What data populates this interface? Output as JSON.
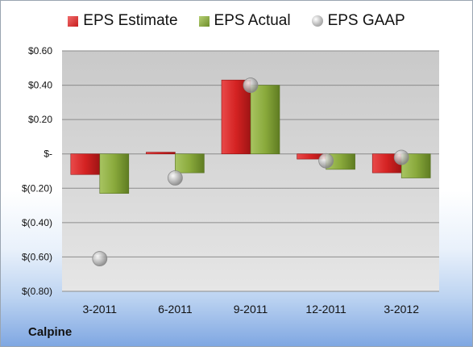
{
  "company": "Calpine",
  "chart_data": {
    "type": "bar",
    "categories": [
      "3-2011",
      "6-2011",
      "9-2011",
      "12-2011",
      "3-2012"
    ],
    "series": [
      {
        "name": "EPS Estimate",
        "kind": "bar",
        "values": [
          -0.12,
          0.01,
          0.43,
          -0.03,
          -0.11
        ],
        "color": "#d42a2a"
      },
      {
        "name": "EPS Actual",
        "kind": "bar",
        "values": [
          -0.23,
          -0.11,
          0.4,
          -0.09,
          -0.14
        ],
        "color": "#8aaa3c"
      },
      {
        "name": "EPS GAAP",
        "kind": "marker",
        "values": [
          -0.61,
          -0.14,
          0.4,
          -0.04,
          -0.02
        ],
        "color": "#b0b0b0"
      }
    ],
    "ylim": [
      -0.8,
      0.6
    ],
    "y_ticks": [
      0.6,
      0.4,
      0.2,
      0,
      -0.2,
      -0.4,
      -0.6,
      -0.8
    ],
    "y_tick_labels": [
      "$0.60",
      "$0.40",
      "$0.20",
      "$-",
      "$(0.20)",
      "$(0.40)",
      "$(0.60)",
      "$(0.80)"
    ],
    "grid": true,
    "legend_position": "top"
  }
}
